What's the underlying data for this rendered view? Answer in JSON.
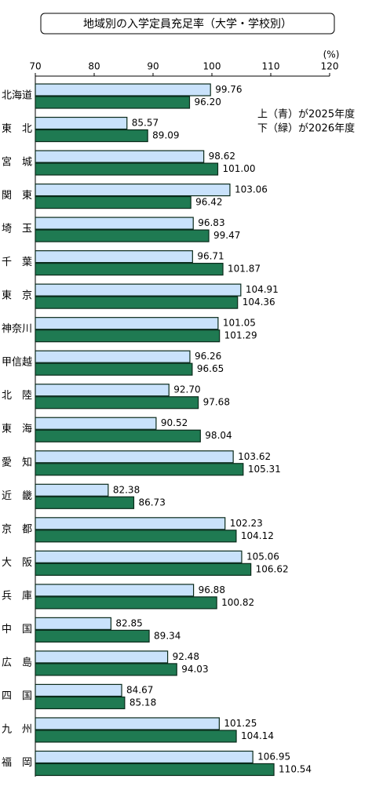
{
  "chart_data": {
    "type": "bar",
    "orientation": "horizontal",
    "title": "地域別の入学定員充足率（大学・学校別）",
    "unit_label": "(%)",
    "categories": [
      "北海道",
      "東　北",
      "宮　城",
      "関　東",
      "埼　玉",
      "千　葉",
      "東　京",
      "神奈川",
      "甲信越",
      "北　陸",
      "東　海",
      "愛　知",
      "近　畿",
      "京　都",
      "大　阪",
      "兵　庫",
      "中　国",
      "広　島",
      "四　国",
      "九　州",
      "福　岡"
    ],
    "series": [
      {
        "name": "上（青）が2025年度",
        "color": "#c9e2fb",
        "values": [
          99.76,
          85.57,
          98.62,
          103.06,
          96.83,
          96.71,
          104.91,
          101.05,
          96.26,
          92.7,
          90.52,
          103.62,
          82.38,
          102.23,
          105.06,
          96.88,
          82.85,
          92.48,
          84.67,
          101.25,
          106.95
        ],
        "value_labels": [
          "99.76",
          "85.57",
          "98.62",
          "103.06",
          "96.83",
          "96.71",
          "104.91",
          "101.05",
          "96.26",
          "92.70",
          "90.52",
          "103.62",
          "82.38",
          "102.23",
          "105.06",
          "96.88",
          "82.85",
          "92.48",
          "84.67",
          "101.25",
          "106.95"
        ]
      },
      {
        "name": "下（緑）が2026年度",
        "color": "#1f7a52",
        "values": [
          96.2,
          89.09,
          101.0,
          96.42,
          99.47,
          101.87,
          104.36,
          101.29,
          96.65,
          97.68,
          98.04,
          105.31,
          86.73,
          104.12,
          106.62,
          100.82,
          89.34,
          94.03,
          85.18,
          104.14,
          110.54
        ],
        "value_labels": [
          "96.20",
          "89.09",
          "101.00",
          "96.42",
          "99.47",
          "101.87",
          "104.36",
          "101.29",
          "96.65",
          "97.68",
          "98.04",
          "105.31",
          "86.73",
          "104.12",
          "106.62",
          "100.82",
          "89.34",
          "94.03",
          "85.18",
          "104.14",
          "110.54"
        ]
      }
    ],
    "xlim": [
      70,
      120
    ],
    "xticks": [
      70,
      80,
      90,
      100,
      110,
      120
    ],
    "grid": false
  }
}
